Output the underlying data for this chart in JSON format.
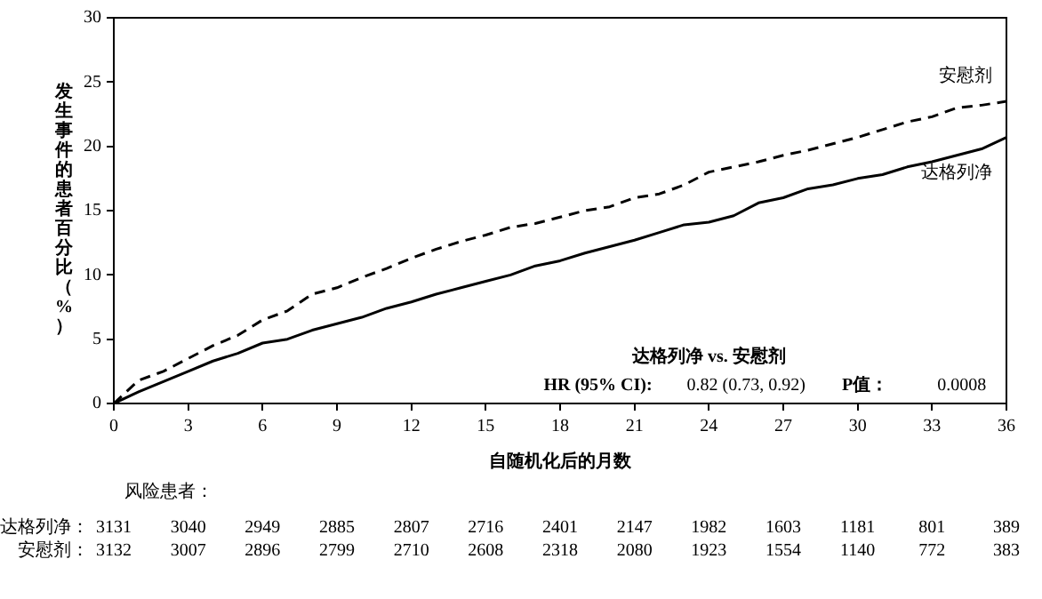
{
  "chart_data": {
    "type": "line",
    "ylabel": "发生事件的患者百分比（%）",
    "xlabel": "自随机化后的月数",
    "x": [
      0,
      1,
      2,
      3,
      4,
      5,
      6,
      7,
      8,
      9,
      10,
      11,
      12,
      13,
      14,
      15,
      16,
      17,
      18,
      19,
      20,
      21,
      22,
      23,
      24,
      25,
      26,
      27,
      28,
      29,
      30,
      31,
      32,
      33,
      34,
      35,
      36
    ],
    "series": [
      {
        "name": "安慰剂",
        "color": "#000000",
        "line_style": "dashed",
        "values": [
          0,
          1.8,
          2.5,
          3.5,
          4.5,
          5.3,
          6.5,
          7.2,
          8.5,
          9.0,
          9.8,
          10.5,
          11.3,
          12.0,
          12.6,
          13.1,
          13.7,
          14.0,
          14.5,
          15.0,
          15.3,
          16.0,
          16.3,
          17.0,
          18.0,
          18.4,
          18.8,
          19.3,
          19.7,
          20.2,
          20.7,
          21.3,
          21.9,
          22.3,
          23.0,
          23.2,
          23.5
        ]
      },
      {
        "name": "达格列净",
        "color": "#000000",
        "line_style": "solid",
        "values": [
          0,
          0.9,
          1.7,
          2.5,
          3.3,
          3.9,
          4.7,
          5.0,
          5.7,
          6.2,
          6.7,
          7.4,
          7.9,
          8.5,
          9.0,
          9.5,
          10.0,
          10.7,
          11.1,
          11.7,
          12.2,
          12.7,
          13.3,
          13.9,
          14.1,
          14.6,
          15.6,
          16.0,
          16.7,
          17.0,
          17.5,
          17.8,
          18.4,
          18.8,
          19.3,
          19.8,
          20.7
        ]
      }
    ],
    "xlim": [
      0,
      36
    ],
    "xticks": [
      0,
      3,
      6,
      9,
      12,
      15,
      18,
      21,
      24,
      27,
      30,
      33,
      36
    ],
    "ylim": [
      0,
      30
    ],
    "yticks": [
      0,
      5,
      10,
      15,
      20,
      25,
      30
    ],
    "grid": false,
    "legend": false,
    "marker": "none",
    "annotations": [
      "达格列净 vs. 安慰剂",
      "HR (95% CI):",
      "0.82 (0.73, 0.92)",
      "P值：",
      "0.0008",
      "风险患者：",
      "达格列净： 3131 3040 2949 2885 2807 2716 2401 2147 1982 1603 1181 801 389",
      "安慰剂： 3132 3007 2896 2799 2710 2608 2318 2080 1923 1554 1140 772 383"
    ]
  }
}
